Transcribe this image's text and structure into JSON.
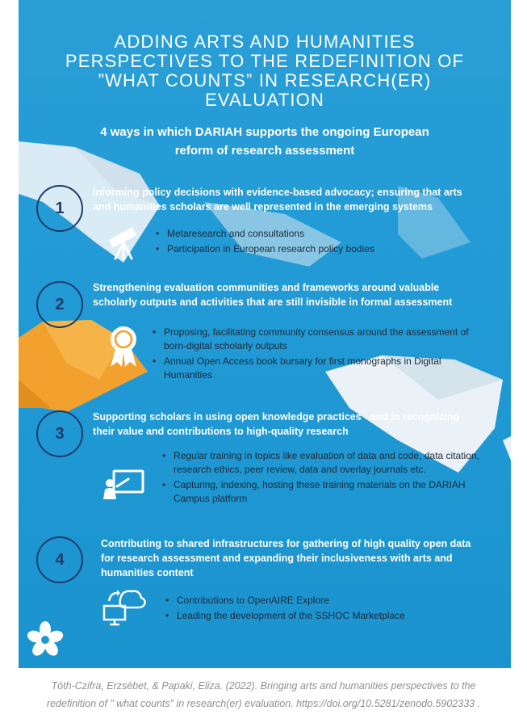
{
  "title": "ADDING ARTS AND HUMANITIES PERSPECTIVES TO THE REDEFINITION OF ”WHAT COUNTS” IN RESEARCH(ER) EVALUATION",
  "subtitle": "4 ways in which DARIAH supports the ongoing European reform of research assessment",
  "colors": {
    "background": "#229bd6",
    "number_ring": "#1f3b6b",
    "heading": "#ffffff",
    "bullet_text": "#1c2a3a",
    "orange_boat": "#f2a12e"
  },
  "ways": [
    {
      "number": "1",
      "icon": "telescope-icon",
      "heading": "Informing policy decisions with evidence-based advocacy; ensuring that arts and humanities scholars are well represented in the emerging systems",
      "bullets": [
        "Metaresearch and consultations",
        "Participation in European research policy bodies"
      ]
    },
    {
      "number": "2",
      "icon": "award-ribbon-icon",
      "heading": "Strengthening evaluation communities and frameworks around valuable scholarly outputs and activities that are still invisible in formal assessment",
      "bullets": [
        "Proposing, facilitating community consensus around the assessment of born-digital scholarly outputs",
        "Annual Open Access book bursary for first monographs in Digital Humanities"
      ]
    },
    {
      "number": "3",
      "icon": "presentation-board-icon",
      "heading": "Supporting scholars in using open knowledge practices - and in recognizing their value and contributions to high-quality research",
      "bullets": [
        "Regular training in topics like evaluation of data and code, data citation, research ethics, peer review, data and overlay journals etc.",
        "Capturing, indexing, hosting these training materials on the DARIAH Campus platform"
      ]
    },
    {
      "number": "4",
      "icon": "cloud-sync-monitor-icon",
      "heading": "Contributing to shared infrastructures for gathering of high quality open data for research assessment and expanding their inclusiveness with arts and humanities content",
      "bullets": [
        "Contributions to OpenAIRE Explore",
        "Leading the development of the SSHOC Marketplace"
      ]
    }
  ],
  "logo_icon": "dariah-flower-logo",
  "caption": {
    "line1": "Tóth-Czifra, Erzsébet, & Papaki, Eliza. (2022). Bringing arts and humanities perspectives to the",
    "line2": "redefinition of ” what counts” in research(er) evaluation. https://doi.org/10.5281/zenodo.5902333 ."
  }
}
